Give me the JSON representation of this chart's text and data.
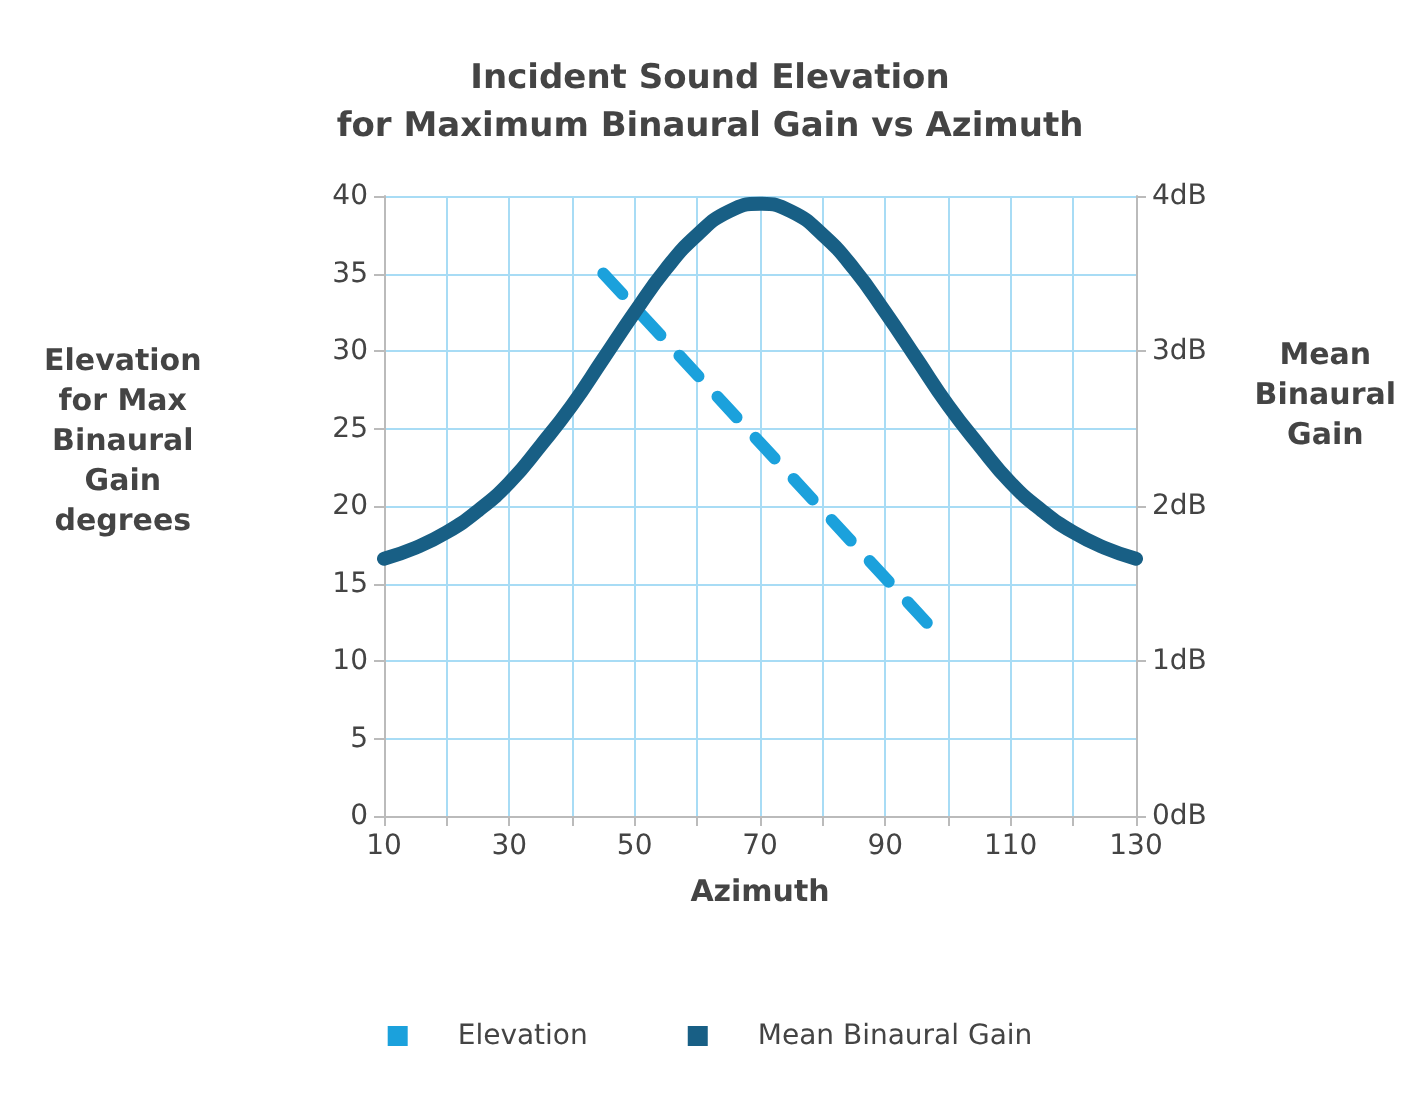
{
  "chart_data": {
    "type": "line",
    "title": "Incident Sound Elevation\nfor Maximum Binaural Gain vs Azimuth",
    "xlabel": "Azimuth",
    "ylabel": "Elevation\nfor Max\nBinaural\nGain\ndegrees",
    "y2label": "Mean\nBinaural\nGain",
    "series": [
      {
        "name": "Elevation",
        "color": "#1ba1dc",
        "line_style": "dashed",
        "x": [
          45,
          97
        ],
        "values": [
          35,
          12.3
        ]
      },
      {
        "name": "Mean Binaural Gain",
        "color": "#185f85",
        "line_style": "solid",
        "axis": "y2",
        "x": [
          10,
          15,
          20,
          25,
          30,
          35,
          40,
          45,
          50,
          55,
          60,
          65,
          70,
          75,
          80,
          85,
          90,
          95,
          100,
          105,
          110,
          115,
          120,
          125,
          130
        ],
        "values": [
          1.66,
          1.73,
          1.83,
          1.97,
          2.15,
          2.39,
          2.65,
          2.95,
          3.25,
          3.53,
          3.75,
          3.9,
          3.95,
          3.9,
          3.75,
          3.53,
          3.25,
          2.95,
          2.65,
          2.39,
          2.15,
          1.97,
          1.83,
          1.73,
          1.66
        ]
      }
    ],
    "xlim": [
      10,
      130
    ],
    "xticks": [
      10,
      {
        "value": 20,
        "label": null
      },
      30,
      {
        "value": 40,
        "label": null
      },
      50,
      {
        "value": 60,
        "label": null
      },
      70,
      {
        "value": 80,
        "label": null
      },
      90,
      {
        "value": 100,
        "label": null
      },
      110,
      {
        "value": 120,
        "label": null
      },
      130
    ],
    "ylim": [
      0,
      40
    ],
    "yticks": [
      0,
      5,
      10,
      15,
      20,
      25,
      30,
      35,
      40
    ],
    "y2lim": [
      0,
      4
    ],
    "y2ticks": [
      {
        "value": 0,
        "label": "0dB"
      },
      {
        "value": 1,
        "label": "1dB"
      },
      {
        "value": 2,
        "label": "2dB"
      },
      {
        "value": 3,
        "label": "3dB"
      },
      {
        "value": 4,
        "label": "4dB"
      }
    ],
    "grid": true,
    "legend": "bottom",
    "marker": "none"
  }
}
